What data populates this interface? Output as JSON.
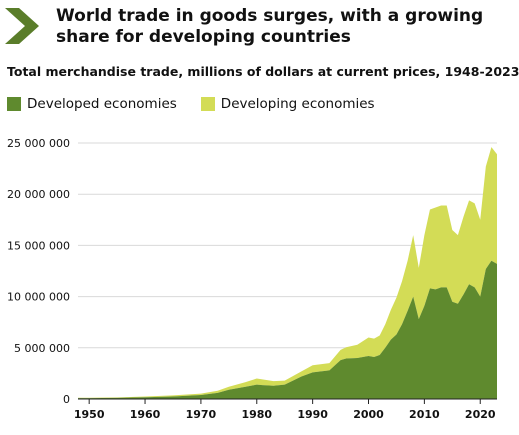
{
  "header": {
    "title": "World trade in goods surges, with a growing share for developing countries",
    "arrow_icon": "chevron-right-icon",
    "arrow_color": "#5a7d2a"
  },
  "chart_data": {
    "type": "area",
    "stacked": true,
    "title": "Total merchandise trade, millions of dollars at current prices, 1948-2023",
    "xlabel": "",
    "ylabel": "",
    "xlim": [
      1948,
      2023
    ],
    "ylim": [
      0,
      25000000
    ],
    "x_ticks": [
      "1950",
      "1960",
      "1970",
      "1980",
      "1990",
      "2000",
      "2010",
      "2020"
    ],
    "y_ticks": [
      "0",
      "5 000 000",
      "10 000 000",
      "15 000 000",
      "20 000 000",
      "25 000 000"
    ],
    "grid": "horizontal",
    "legend_position": "top-left",
    "x": [
      1948,
      1950,
      1955,
      1960,
      1965,
      1970,
      1973,
      1975,
      1978,
      1980,
      1981,
      1983,
      1985,
      1988,
      1990,
      1993,
      1995,
      1996,
      1998,
      2000,
      2001,
      2002,
      2003,
      2004,
      2005,
      2006,
      2007,
      2008,
      2009,
      2010,
      2011,
      2012,
      2013,
      2014,
      2015,
      2016,
      2017,
      2018,
      2019,
      2020,
      2021,
      2022,
      2023
    ],
    "series": [
      {
        "name": "Developed economies",
        "color": "#5f8a2e",
        "values": [
          80000,
          85000,
          110000,
          170000,
          250000,
          390000,
          600000,
          900000,
          1200000,
          1400000,
          1350000,
          1300000,
          1400000,
          2200000,
          2600000,
          2800000,
          3800000,
          3950000,
          4000000,
          4200000,
          4100000,
          4300000,
          5000000,
          5800000,
          6300000,
          7300000,
          8600000,
          10000000,
          7800000,
          9100000,
          10800000,
          10700000,
          10900000,
          10900000,
          9500000,
          9300000,
          10200000,
          11200000,
          10900000,
          10000000,
          12700000,
          13500000,
          13200000
        ]
      },
      {
        "name": "Developing economies",
        "color": "#d3dc56",
        "values": [
          40000,
          40000,
          50000,
          70000,
          110000,
          140000,
          200000,
          300000,
          450000,
          600000,
          570000,
          450000,
          400000,
          500000,
          700000,
          700000,
          1000000,
          1100000,
          1300000,
          1800000,
          1800000,
          1900000,
          2300000,
          2900000,
          3600000,
          4200000,
          4900000,
          6000000,
          5000000,
          6900000,
          7700000,
          8000000,
          8000000,
          8000000,
          7000000,
          6700000,
          7600000,
          8200000,
          8200000,
          7500000,
          10000000,
          11100000,
          10700000
        ]
      }
    ]
  }
}
